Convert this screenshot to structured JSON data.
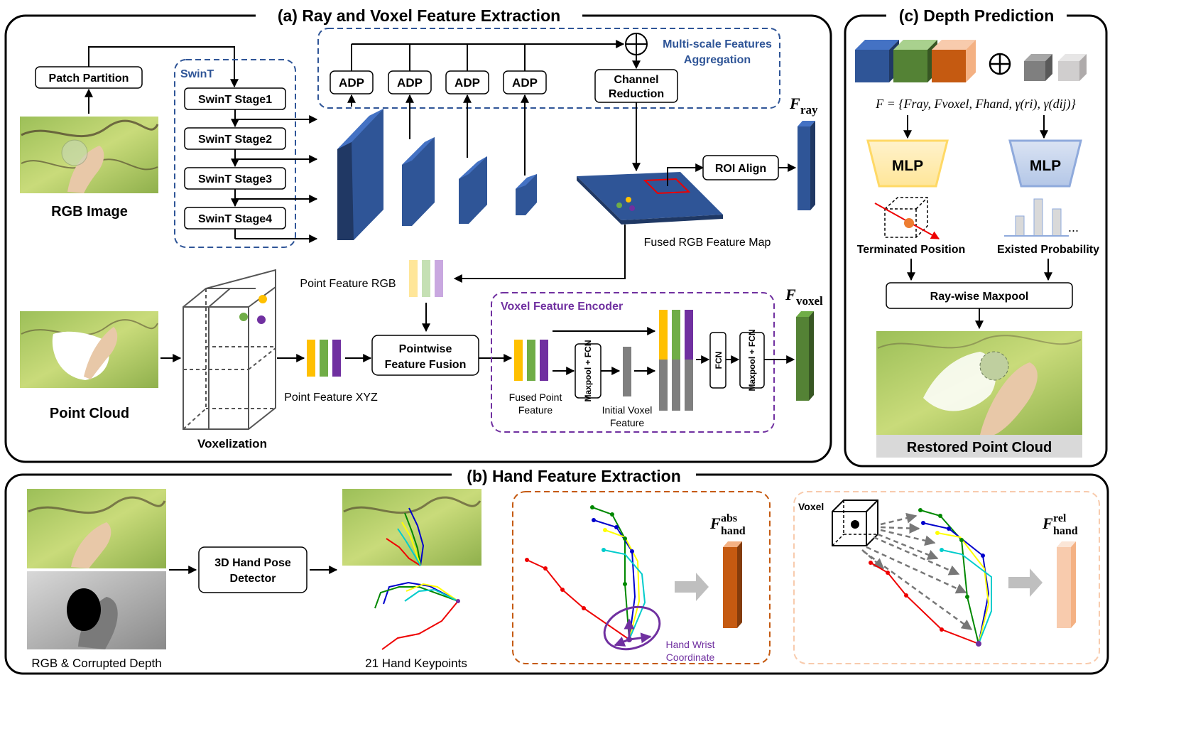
{
  "panel_a": {
    "title": "(a) Ray and Voxel Feature Extraction",
    "patch_partition": "Patch Partition",
    "rgb_image_label": "RGB Image",
    "swint_title": "SwinT",
    "swint_stages": [
      "SwinT Stage1",
      "SwinT Stage2",
      "SwinT Stage3",
      "SwinT Stage4"
    ],
    "adp_labels": [
      "ADP",
      "ADP",
      "ADP",
      "ADP"
    ],
    "channel_reduction": [
      "Channel",
      "Reduction"
    ],
    "multiscale_label": [
      "Multi-scale Features",
      "Aggregation"
    ],
    "roi_align": "ROI Align",
    "f_ray": {
      "base": "F",
      "sub": "ray"
    },
    "fused_map_label": "Fused RGB Feature Map",
    "point_feature_rgb": "Point Feature RGB",
    "point_cloud_label": "Point Cloud",
    "voxelization_label": "Voxelization",
    "point_feature_xyz": "Point Feature XYZ",
    "pointwise_fusion": [
      "Pointwise",
      "Feature Fusion"
    ],
    "voxel_encoder_title": "Voxel Feature Encoder",
    "maxpool_fcn": "Maxpool + FCN",
    "fcn": "FCN",
    "fused_point_feature": [
      "Fused Point",
      "Feature"
    ],
    "initial_voxel_feature": [
      "Initial  Voxel",
      "Feature"
    ],
    "f_voxel": {
      "base": "F",
      "sub": "voxel"
    }
  },
  "panel_b": {
    "title": "(b) Hand Feature Extraction",
    "rgb_depth_label": "RGB & Corrupted Depth",
    "detector": [
      "3D Hand Pose",
      "Detector"
    ],
    "keypoints_label": "21 Hand Keypoints",
    "wrist_coord": [
      "Hand Wrist",
      "Coordinate"
    ],
    "f_hand_abs": {
      "base": "F",
      "sub": "hand",
      "sup": "abs"
    },
    "voxel_label": "Voxel",
    "f_hand_rel": {
      "base": "F",
      "sub": "hand",
      "sup": "rel"
    }
  },
  "panel_c": {
    "title": "(c) Depth Prediction",
    "formula": "F = {Fray, Fvoxel, Fhand, γ(ri), γ(dij)}",
    "mlp_left": "MLP",
    "mlp_right": "MLP",
    "terminated_position": "Terminated Position",
    "existed_probability": "Existed Probability",
    "ray_maxpool": "Ray-wise Maxpool",
    "restored_label": "Restored Point Cloud",
    "prob_ellipsis": "..."
  },
  "colors": {
    "swint_blue": "#2f5597",
    "feature_blue": "#2f5597",
    "voxel_green": "#548235",
    "hand_abs": "#c55a11",
    "hand_rel": "#f4b183",
    "purple": "#7030a0",
    "yellow": "#ffc000",
    "mlp_yellow": "#ffe699",
    "mlp_blue": "#b4c7e7",
    "orange_dash": "#c55a11",
    "peach_dash": "#f8cbad"
  }
}
